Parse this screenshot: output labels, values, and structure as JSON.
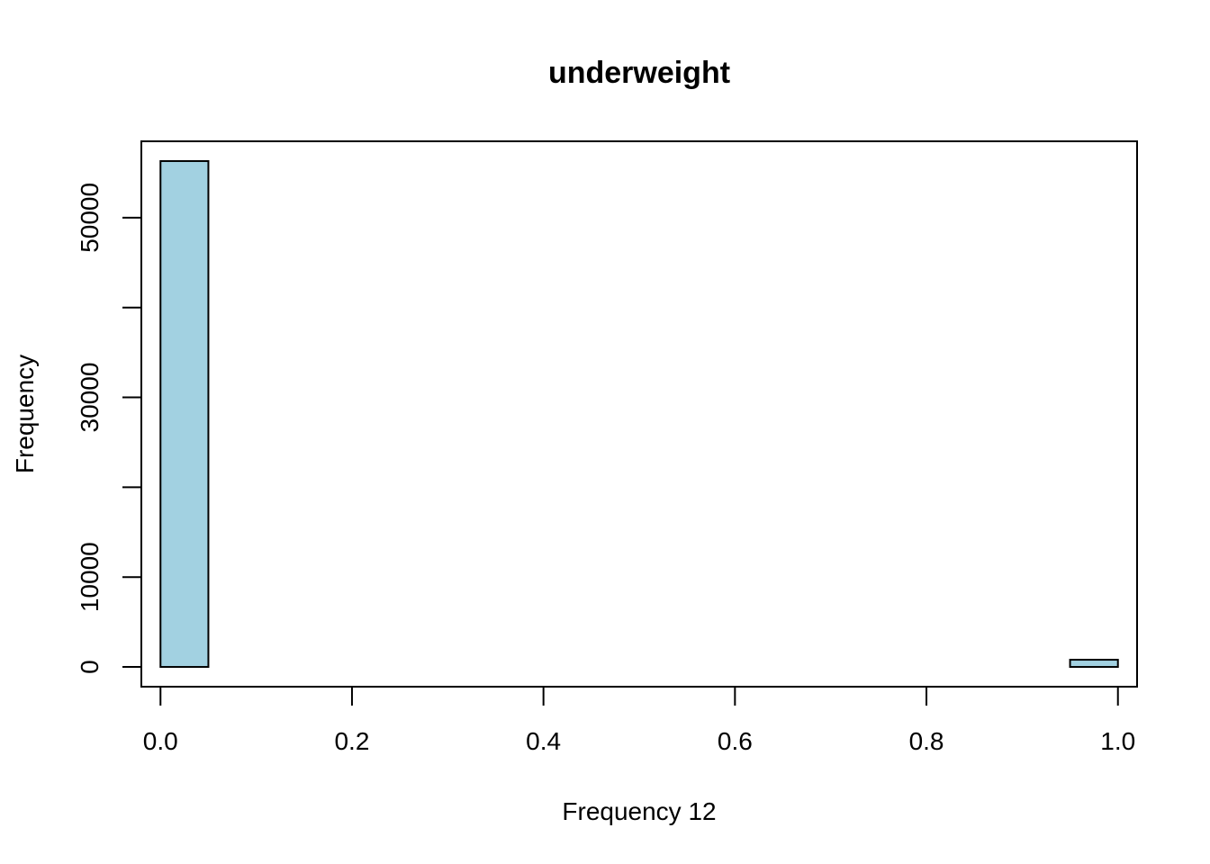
{
  "chart_data": {
    "type": "bar",
    "title": "underweight",
    "xlabel": "Frequency 12",
    "ylabel": "Frequency",
    "xlim": [
      -0.02,
      1.02
    ],
    "ylim": [
      -2200,
      58500
    ],
    "grid": false,
    "legend": "none",
    "bin_width": 0.05,
    "bins": [
      {
        "x0": 0.0,
        "x1": 0.05,
        "count": 56300
      },
      {
        "x0": 0.05,
        "x1": 0.1,
        "count": 0
      },
      {
        "x0": 0.1,
        "x1": 0.15,
        "count": 0
      },
      {
        "x0": 0.15,
        "x1": 0.2,
        "count": 0
      },
      {
        "x0": 0.2,
        "x1": 0.25,
        "count": 0
      },
      {
        "x0": 0.25,
        "x1": 0.3,
        "count": 0
      },
      {
        "x0": 0.3,
        "x1": 0.35,
        "count": 0
      },
      {
        "x0": 0.35,
        "x1": 0.4,
        "count": 0
      },
      {
        "x0": 0.4,
        "x1": 0.45,
        "count": 0
      },
      {
        "x0": 0.45,
        "x1": 0.5,
        "count": 0
      },
      {
        "x0": 0.5,
        "x1": 0.55,
        "count": 0
      },
      {
        "x0": 0.55,
        "x1": 0.6,
        "count": 0
      },
      {
        "x0": 0.6,
        "x1": 0.65,
        "count": 0
      },
      {
        "x0": 0.65,
        "x1": 0.7,
        "count": 0
      },
      {
        "x0": 0.7,
        "x1": 0.75,
        "count": 0
      },
      {
        "x0": 0.75,
        "x1": 0.8,
        "count": 0
      },
      {
        "x0": 0.8,
        "x1": 0.85,
        "count": 0
      },
      {
        "x0": 0.85,
        "x1": 0.9,
        "count": 0
      },
      {
        "x0": 0.9,
        "x1": 0.95,
        "count": 0
      },
      {
        "x0": 0.95,
        "x1": 1.0,
        "count": 800
      }
    ],
    "x_ticks": [
      0.0,
      0.2,
      0.4,
      0.6,
      0.8,
      1.0
    ],
    "x_tick_labels": [
      "0.0",
      "0.2",
      "0.4",
      "0.6",
      "0.8",
      "1.0"
    ],
    "y_ticks": [
      0,
      10000,
      20000,
      30000,
      40000,
      50000
    ],
    "y_tick_labels": [
      "0",
      "10000",
      "",
      "30000",
      "",
      "50000"
    ],
    "bar_fill": "#a2d1e1",
    "bar_stroke": "#000000"
  }
}
